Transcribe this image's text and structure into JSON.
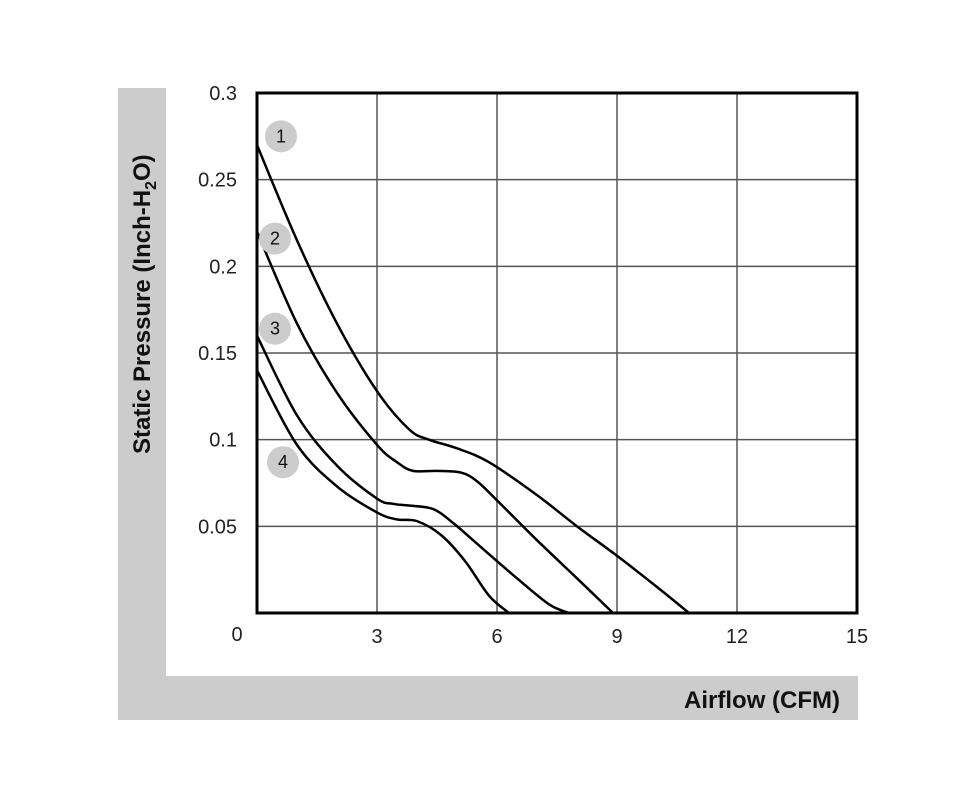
{
  "chart_data": {
    "type": "line",
    "xlabel": "Airflow (CFM)",
    "ylabel_main": "Static Pressure (Inch-H",
    "ylabel_sub": "2",
    "ylabel_tail": "O)",
    "xlim": [
      0,
      15
    ],
    "ylim": [
      0,
      0.3
    ],
    "x_ticks": [
      3,
      6,
      9,
      12,
      15
    ],
    "x_tick_labels": [
      "3",
      "6",
      "9",
      "12",
      "15"
    ],
    "y_ticks": [
      0.05,
      0.1,
      0.15,
      0.2,
      0.25,
      0.3
    ],
    "y_tick_labels": [
      "0.05",
      "0.1",
      "0.15",
      "0.2",
      "0.25",
      "0.3"
    ],
    "origin_label": "0",
    "grid": true,
    "series": [
      {
        "name": "1",
        "label_pos": [
          0.6,
          0.275
        ],
        "x": [
          0,
          1,
          2,
          3,
          3.8,
          4.3,
          5,
          5.8,
          7,
          8,
          9,
          10,
          10.8
        ],
        "y": [
          0.27,
          0.215,
          0.167,
          0.128,
          0.106,
          0.1,
          0.095,
          0.087,
          0.068,
          0.05,
          0.033,
          0.015,
          0
        ]
      },
      {
        "name": "2",
        "label_pos": [
          0.45,
          0.216
        ],
        "x": [
          0,
          1,
          2,
          3,
          3.5,
          3.9,
          4.5,
          5.1,
          5.5,
          6,
          7,
          8,
          8.9
        ],
        "y": [
          0.22,
          0.167,
          0.127,
          0.097,
          0.087,
          0.082,
          0.082,
          0.081,
          0.076,
          0.065,
          0.042,
          0.02,
          0
        ]
      },
      {
        "name": "3",
        "label_pos": [
          0.45,
          0.164
        ],
        "x": [
          0,
          1,
          2,
          3,
          3.4,
          3.8,
          4.4,
          4.9,
          5.5,
          6.5,
          7.3,
          7.8
        ],
        "y": [
          0.16,
          0.114,
          0.085,
          0.066,
          0.063,
          0.062,
          0.06,
          0.052,
          0.04,
          0.02,
          0.005,
          0
        ]
      },
      {
        "name": "4",
        "label_pos": [
          0.65,
          0.087
        ],
        "x": [
          0,
          1,
          2,
          3,
          3.5,
          4,
          4.6,
          5.2,
          5.8,
          6.3
        ],
        "y": [
          0.14,
          0.097,
          0.073,
          0.058,
          0.054,
          0.053,
          0.045,
          0.03,
          0.01,
          0
        ]
      }
    ]
  }
}
